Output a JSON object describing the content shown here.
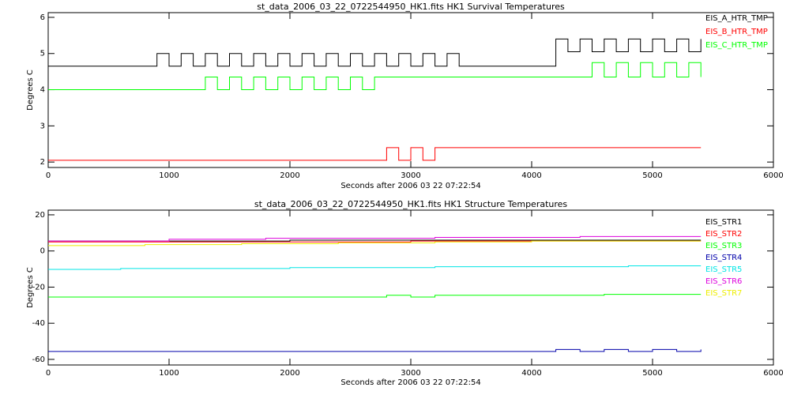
{
  "chart_data": [
    {
      "type": "line",
      "title": "st_data_2006_03_22_0722544950_HK1.fits HK1 Survival Temperatures",
      "xlabel": "Seconds after 2006 03 22 07:22:54",
      "ylabel": "Degrees C",
      "xlim": [
        0,
        6000
      ],
      "xticks": [
        0,
        1000,
        2000,
        3000,
        4000,
        5000,
        6000
      ],
      "ylim": [
        1.85,
        6.13
      ],
      "yticks": [
        2,
        3,
        4,
        5,
        6
      ],
      "steps": true,
      "legend": "upper right",
      "x": [
        0,
        100,
        200,
        300,
        400,
        500,
        600,
        700,
        800,
        900,
        1000,
        1100,
        1200,
        1300,
        1400,
        1500,
        1600,
        1700,
        1800,
        1900,
        2000,
        2100,
        2200,
        2300,
        2400,
        2500,
        2600,
        2700,
        2800,
        2900,
        3000,
        3100,
        3200,
        3300,
        3400,
        3500,
        3600,
        3700,
        3800,
        3900,
        4000,
        4100,
        4200,
        4300,
        4400,
        4500,
        4600,
        4700,
        4800,
        4900,
        5000,
        5100,
        5200,
        5300,
        5400
      ],
      "series": [
        {
          "name": "EIS_A_HTR_TMP",
          "color": "#000000",
          "values": [
            4.65,
            4.65,
            4.65,
            4.65,
            4.65,
            4.65,
            4.65,
            4.65,
            4.65,
            5.0,
            4.65,
            5.0,
            4.65,
            5.0,
            4.65,
            5.0,
            4.65,
            5.0,
            4.65,
            5.0,
            4.65,
            5.0,
            4.65,
            5.0,
            4.65,
            5.0,
            4.65,
            5.0,
            4.65,
            5.0,
            4.65,
            5.0,
            4.65,
            5.0,
            4.65,
            4.65,
            4.65,
            4.65,
            4.65,
            4.65,
            4.65,
            4.65,
            5.4,
            5.05,
            5.4,
            5.05,
            5.4,
            5.05,
            5.4,
            5.05,
            5.4,
            5.05,
            5.4,
            5.05,
            5.4
          ]
        },
        {
          "name": "EIS_B_HTR_TMP",
          "color": "#ff0000",
          "values": [
            2.05,
            2.05,
            2.05,
            2.05,
            2.05,
            2.05,
            2.05,
            2.05,
            2.05,
            2.05,
            2.05,
            2.05,
            2.05,
            2.05,
            2.05,
            2.05,
            2.05,
            2.05,
            2.05,
            2.05,
            2.05,
            2.05,
            2.05,
            2.05,
            2.05,
            2.05,
            2.05,
            2.05,
            2.4,
            2.05,
            2.4,
            2.05,
            2.4,
            2.4,
            2.4,
            2.4,
            2.4,
            2.4,
            2.4,
            2.4,
            2.4,
            2.4,
            2.4,
            2.4,
            2.4,
            2.4,
            2.4,
            2.4,
            2.4,
            2.4,
            2.4,
            2.4,
            2.4,
            2.4,
            2.4
          ]
        },
        {
          "name": "EIS_C_HTR_TMP",
          "color": "#00ff00",
          "values": [
            4.0,
            4.0,
            4.0,
            4.0,
            4.0,
            4.0,
            4.0,
            4.0,
            4.0,
            4.0,
            4.0,
            4.0,
            4.0,
            4.35,
            4.0,
            4.35,
            4.0,
            4.35,
            4.0,
            4.35,
            4.0,
            4.35,
            4.0,
            4.35,
            4.0,
            4.35,
            4.0,
            4.35,
            4.35,
            4.35,
            4.35,
            4.35,
            4.35,
            4.35,
            4.35,
            4.35,
            4.35,
            4.35,
            4.35,
            4.35,
            4.35,
            4.35,
            4.35,
            4.35,
            4.35,
            4.75,
            4.35,
            4.75,
            4.35,
            4.75,
            4.35,
            4.75,
            4.35,
            4.75,
            4.35
          ]
        }
      ]
    },
    {
      "type": "line",
      "title": "st_data_2006_03_22_0722544950_HK1.fits HK1 Structure Temperatures",
      "xlabel": "Seconds after 2006 03 22 07:22:54",
      "ylabel": "Degrees C",
      "xlim": [
        0,
        6000
      ],
      "xticks": [
        0,
        1000,
        2000,
        3000,
        4000,
        5000,
        6000
      ],
      "ylim": [
        -63.1,
        22.6
      ],
      "yticks": [
        -60,
        -40,
        -20,
        0,
        20
      ],
      "steps": true,
      "legend": "upper right",
      "x": [
        0,
        200,
        400,
        600,
        800,
        1000,
        1200,
        1400,
        1600,
        1800,
        2000,
        2200,
        2400,
        2600,
        2800,
        3000,
        3200,
        3400,
        3600,
        3800,
        4000,
        4200,
        4400,
        4600,
        4800,
        5000,
        5200,
        5400
      ],
      "series": [
        {
          "name": "EIS_STR1",
          "color": "#000000",
          "values": [
            5.5,
            5.5,
            5.5,
            5.5,
            5.5,
            5.5,
            5.5,
            5.5,
            5.5,
            5.5,
            6.0,
            6.0,
            6.0,
            6.0,
            6.0,
            6.0,
            6.0,
            6.0,
            6.0,
            6.0,
            6.0,
            6.0,
            6.0,
            6.0,
            6.0,
            6.0,
            6.0,
            6.0
          ]
        },
        {
          "name": "EIS_STR2",
          "color": "#ff0000",
          "values": [
            5.0,
            5.0,
            5.0,
            5.0,
            5.0,
            5.0,
            5.0,
            5.0,
            5.0,
            5.0,
            5.0,
            5.0,
            5.0,
            5.0,
            5.0,
            5.5,
            5.5,
            5.5,
            5.5,
            5.5,
            5.5,
            5.5,
            5.5,
            5.5,
            5.5,
            5.5,
            5.5,
            5.5
          ]
        },
        {
          "name": "EIS_STR3",
          "color": "#00ff00",
          "values": [
            -25.5,
            -25.5,
            -25.5,
            -25.5,
            -25.5,
            -25.5,
            -25.5,
            -25.5,
            -25.5,
            -25.5,
            -25.5,
            -25.5,
            -25.5,
            -25.5,
            -24.5,
            -25.5,
            -24.5,
            -24.5,
            -24.5,
            -24.5,
            -24.5,
            -24.5,
            -24.5,
            -24,
            -24,
            -24,
            -24,
            -24
          ]
        },
        {
          "name": "EIS_STR4",
          "color": "#0000aa",
          "values": [
            -55.6,
            -55.6,
            -55.6,
            -55.6,
            -55.6,
            -55.6,
            -55.6,
            -55.6,
            -55.6,
            -55.6,
            -55.6,
            -55.6,
            -55.6,
            -55.6,
            -55.6,
            -55.6,
            -55.6,
            -55.6,
            -55.6,
            -55.6,
            -55.6,
            -54.5,
            -55.6,
            -54.5,
            -55.6,
            -54.5,
            -55.6,
            -54.5
          ]
        },
        {
          "name": "EIS_STR5",
          "color": "#00e5e5",
          "values": [
            -10.2,
            -10.2,
            -10.2,
            -9.7,
            -9.7,
            -9.7,
            -9.7,
            -9.7,
            -9.7,
            -9.7,
            -9.2,
            -9.2,
            -9.2,
            -9.2,
            -9.2,
            -9.2,
            -8.7,
            -8.7,
            -8.7,
            -8.7,
            -8.7,
            -8.7,
            -8.7,
            -8.7,
            -8.2,
            -8.2,
            -8.2,
            -8.2
          ]
        },
        {
          "name": "EIS_STR6",
          "color": "#dd00dd",
          "values": [
            5.5,
            5.5,
            5.5,
            5.5,
            5.5,
            6.5,
            6.5,
            6.5,
            6.5,
            7.0,
            7.0,
            7.0,
            7.0,
            7.0,
            7.0,
            7.0,
            7.5,
            7.5,
            7.5,
            7.5,
            7.5,
            7.5,
            8.0,
            8.0,
            8.0,
            8.0,
            8.0,
            8.0
          ]
        },
        {
          "name": "EIS_STR7",
          "color": "#eeee00",
          "values": [
            3.0,
            3.0,
            3.0,
            3.0,
            3.5,
            3.5,
            3.5,
            3.5,
            4.0,
            4.0,
            4.0,
            4.0,
            4.5,
            4.5,
            4.5,
            4.5,
            5.0,
            5.0,
            5.0,
            5.0,
            5.5,
            5.5,
            5.5,
            5.5,
            5.5,
            5.5,
            5.5,
            5.5
          ]
        }
      ]
    }
  ]
}
